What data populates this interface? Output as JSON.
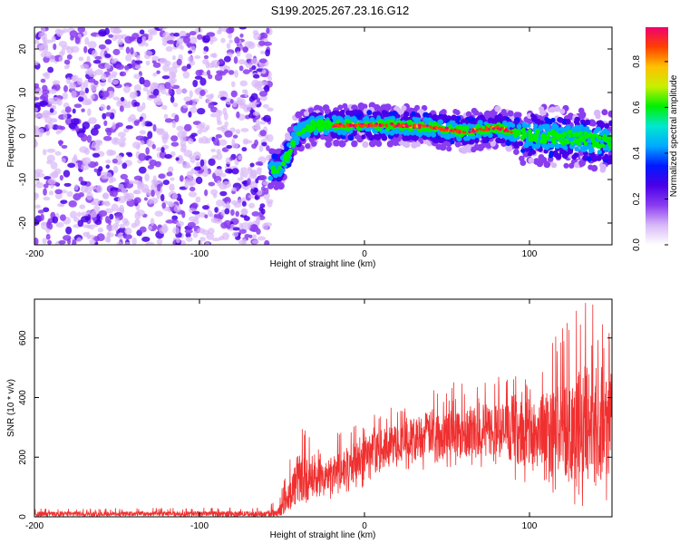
{
  "title": "S199.2025.267.23.16.G12",
  "chart_data": [
    {
      "id": "spectrogram",
      "type": "heatmap",
      "xlabel": "Height of straight line (km)",
      "ylabel": "Frequency (Hz)",
      "xlim": [
        -200,
        150
      ],
      "ylim": [
        -25,
        25
      ],
      "xticks": [
        -200,
        -100,
        0,
        100
      ],
      "yticks": [
        -20,
        -10,
        0,
        10,
        20
      ],
      "colorbar": {
        "label": "Normalized spectral amplitude",
        "range": [
          0,
          0.95
        ],
        "ticks": [
          0.0,
          0.2,
          0.4,
          0.6,
          0.8
        ],
        "colors": [
          "#ffffff",
          "#d8b8f8",
          "#8a3cf0",
          "#4a00e8",
          "#0018ff",
          "#00aaff",
          "#00e8d0",
          "#00f000",
          "#c8f000",
          "#ffc000",
          "#ff4000",
          "#f00070"
        ]
      },
      "regions": [
        {
          "name": "noise",
          "x_range": [
            -200,
            -57
          ],
          "y_range": [
            -25,
            25
          ]
        },
        {
          "name": "signal-track",
          "x_range": [
            -57,
            150
          ],
          "track": [
            [
              -57,
              -8
            ],
            [
              -50,
              -7
            ],
            [
              -45,
              -3
            ],
            [
              -42,
              0
            ],
            [
              -38,
              1.5
            ],
            [
              -30,
              2.5
            ],
            [
              -20,
              2.5
            ],
            [
              0,
              2.5
            ],
            [
              20,
              2.5
            ],
            [
              40,
              2
            ],
            [
              60,
              1
            ],
            [
              80,
              2
            ],
            [
              95,
              0.5
            ],
            [
              110,
              0
            ],
            [
              130,
              -0.5
            ],
            [
              150,
              -1.5
            ]
          ]
        }
      ]
    },
    {
      "id": "snr",
      "type": "line",
      "xlabel": "Height of straight line (km)",
      "ylabel": "SNR (10 * v/v)",
      "xlim": [
        -200,
        150
      ],
      "ylim": [
        0,
        730
      ],
      "xticks": [
        -200,
        -100,
        0,
        100
      ],
      "yticks": [
        0,
        200,
        400,
        600
      ],
      "color": "#f03030",
      "series": [
        {
          "name": "SNR",
          "envelope": {
            "x": [
              -200,
              -60,
              -52,
              -45,
              -40,
              -30,
              -20,
              -10,
              0,
              20,
              40,
              60,
              80,
              100,
              110,
              120,
              130,
              140,
              150
            ],
            "mean": [
              10,
              10,
              15,
              80,
              130,
              120,
              140,
              170,
              200,
              250,
              280,
              290,
              290,
              280,
              290,
              300,
              310,
              320,
              320
            ],
            "max": [
              28,
              32,
              60,
              200,
              370,
              220,
              280,
              320,
              330,
              380,
              430,
              470,
              480,
              520,
              560,
              650,
              730,
              710,
              680
            ],
            "min": [
              0,
              0,
              0,
              20,
              30,
              40,
              60,
              80,
              90,
              140,
              160,
              170,
              150,
              100,
              90,
              60,
              30,
              30,
              20
            ]
          }
        }
      ]
    }
  ]
}
